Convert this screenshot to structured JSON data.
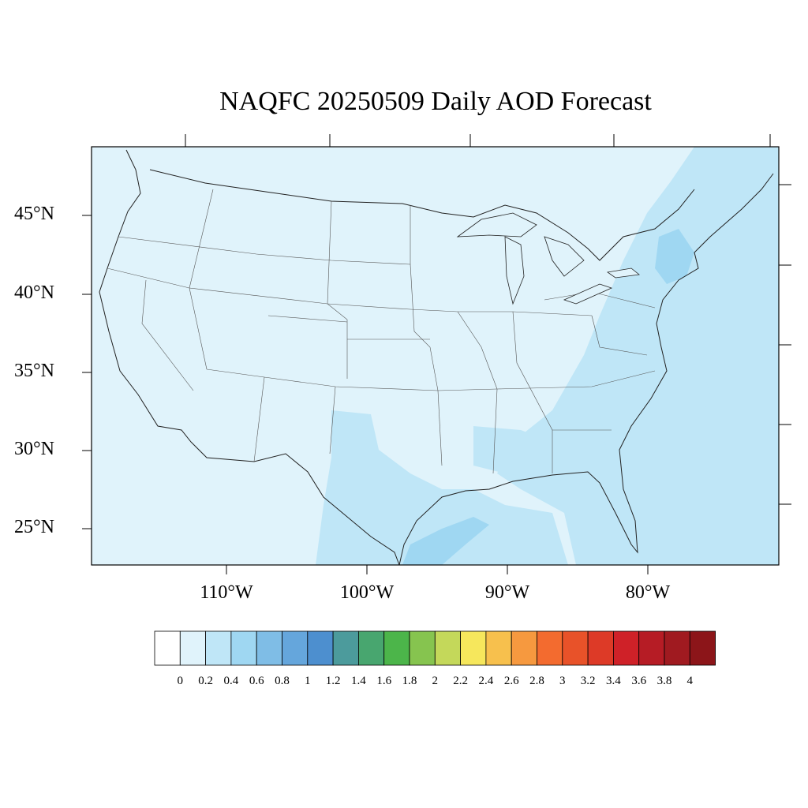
{
  "title": "NAQFC 20250509 Daily AOD Forecast",
  "axes": {
    "lat_labels": [
      "45°N",
      "40°N",
      "35°N",
      "30°N",
      "25°N"
    ],
    "lon_labels": [
      "110°W",
      "100°W",
      "90°W",
      "80°W"
    ]
  },
  "colorbar": {
    "labels": [
      "0",
      "0.2",
      "0.4",
      "0.6",
      "0.8",
      "1",
      "1.2",
      "1.4",
      "1.6",
      "1.8",
      "2",
      "2.2",
      "2.4",
      "2.6",
      "2.8",
      "3",
      "3.2",
      "3.4",
      "3.6",
      "3.8",
      "4"
    ],
    "colors": [
      "#ffffff",
      "#e0f3fb",
      "#bfe6f7",
      "#9fd7f2",
      "#7fbde6",
      "#65a6dc",
      "#4d8fcf",
      "#4c9b9c",
      "#48a66f",
      "#4cb54a",
      "#86c44f",
      "#c4d85a",
      "#f6e75c",
      "#f7c04d",
      "#f6993f",
      "#f36b2f",
      "#e85229",
      "#dd3a27",
      "#cf2128",
      "#b61c25",
      "#a01a20",
      "#8c1519"
    ]
  },
  "map": {
    "background_color": "#e0f3fb",
    "level_colors": {
      "0.2-0.4": "#bfe6f7",
      "0.4-0.6": "#9fd7f2"
    }
  }
}
